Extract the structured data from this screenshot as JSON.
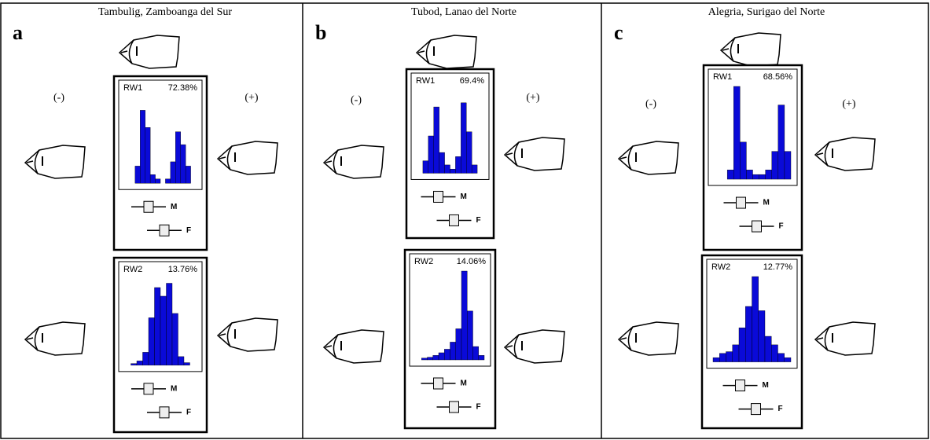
{
  "panels": [
    {
      "letter": "a",
      "title": "Tambulig, Zamboanga del Sur",
      "minus": "(-)",
      "plus": "(+)",
      "rw": [
        {
          "label": "RW1",
          "percent": "72.38%",
          "m": "M",
          "f": "F"
        },
        {
          "label": "RW2",
          "percent": "13.76%",
          "m": "M",
          "f": "F"
        }
      ]
    },
    {
      "letter": "b",
      "title": "Tubod, Lanao del Norte",
      "minus": "(-)",
      "plus": "(+)",
      "rw": [
        {
          "label": "RW1",
          "percent": "69.4%",
          "m": "M",
          "f": "F"
        },
        {
          "label": "RW2",
          "percent": "14.06%",
          "m": "M",
          "f": "F"
        }
      ]
    },
    {
      "letter": "c",
      "title": "Alegria, Surigao del Norte",
      "minus": "(-)",
      "plus": "(+)",
      "rw": [
        {
          "label": "RW1",
          "percent": "68.56%",
          "m": "M",
          "f": "F"
        },
        {
          "label": "RW2",
          "percent": "12.77%",
          "m": "M",
          "f": "F"
        }
      ]
    }
  ]
}
